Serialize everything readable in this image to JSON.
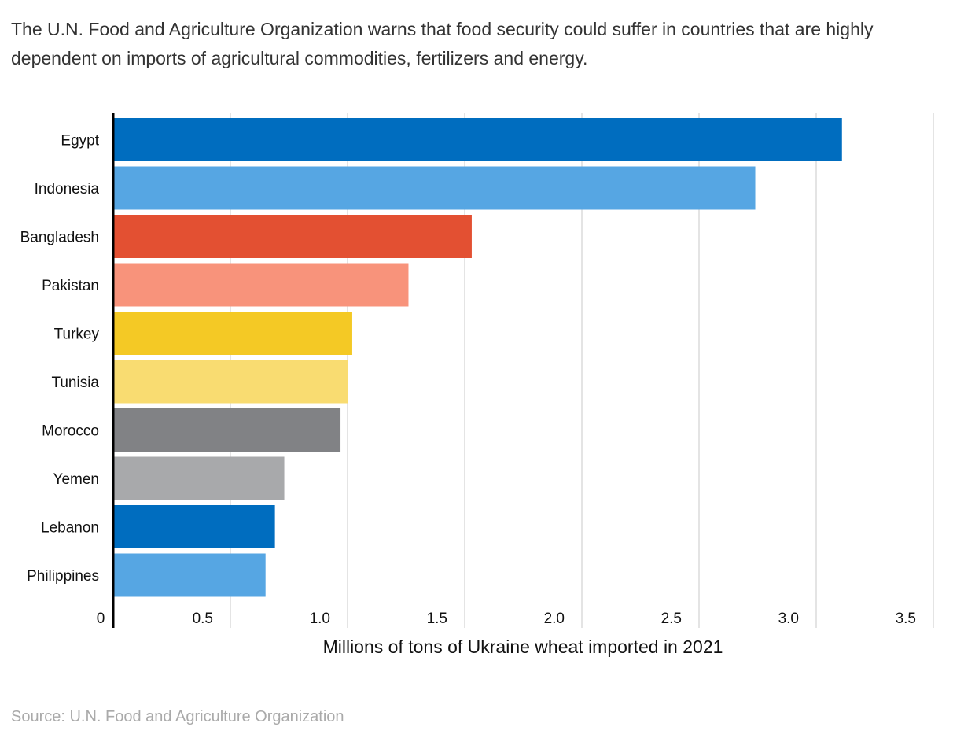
{
  "subtitle": "The U.N. Food and Agriculture Organization warns that food security could suffer in countries that are highly dependent on imports of agricultural commodities, fertilizers and energy.",
  "source": "Source: U.N. Food and Agriculture Organization",
  "chart_data": {
    "type": "bar",
    "orientation": "horizontal",
    "categories": [
      "Egypt",
      "Indonesia",
      "Bangladesh",
      "Pakistan",
      "Turkey",
      "Tunisia",
      "Morocco",
      "Yemen",
      "Lebanon",
      "Philippines"
    ],
    "values": [
      3.11,
      2.74,
      1.53,
      1.26,
      1.02,
      1.0,
      0.97,
      0.73,
      0.69,
      0.65
    ],
    "colors": [
      "#006dbf",
      "#56a6e3",
      "#e35032",
      "#f8937b",
      "#f4c925",
      "#f9dc71",
      "#818285",
      "#a8a9ab",
      "#006dbf",
      "#56a6e3"
    ],
    "xlabel": "Millions of tons of Ukraine wheat imported in 2021",
    "ylabel": "",
    "xlim": [
      0,
      3.5
    ],
    "xticks": [
      "0",
      "0.5",
      "1.0",
      "1.5",
      "2.0",
      "2.5",
      "3.0",
      "3.5"
    ],
    "grid": "vertical"
  }
}
